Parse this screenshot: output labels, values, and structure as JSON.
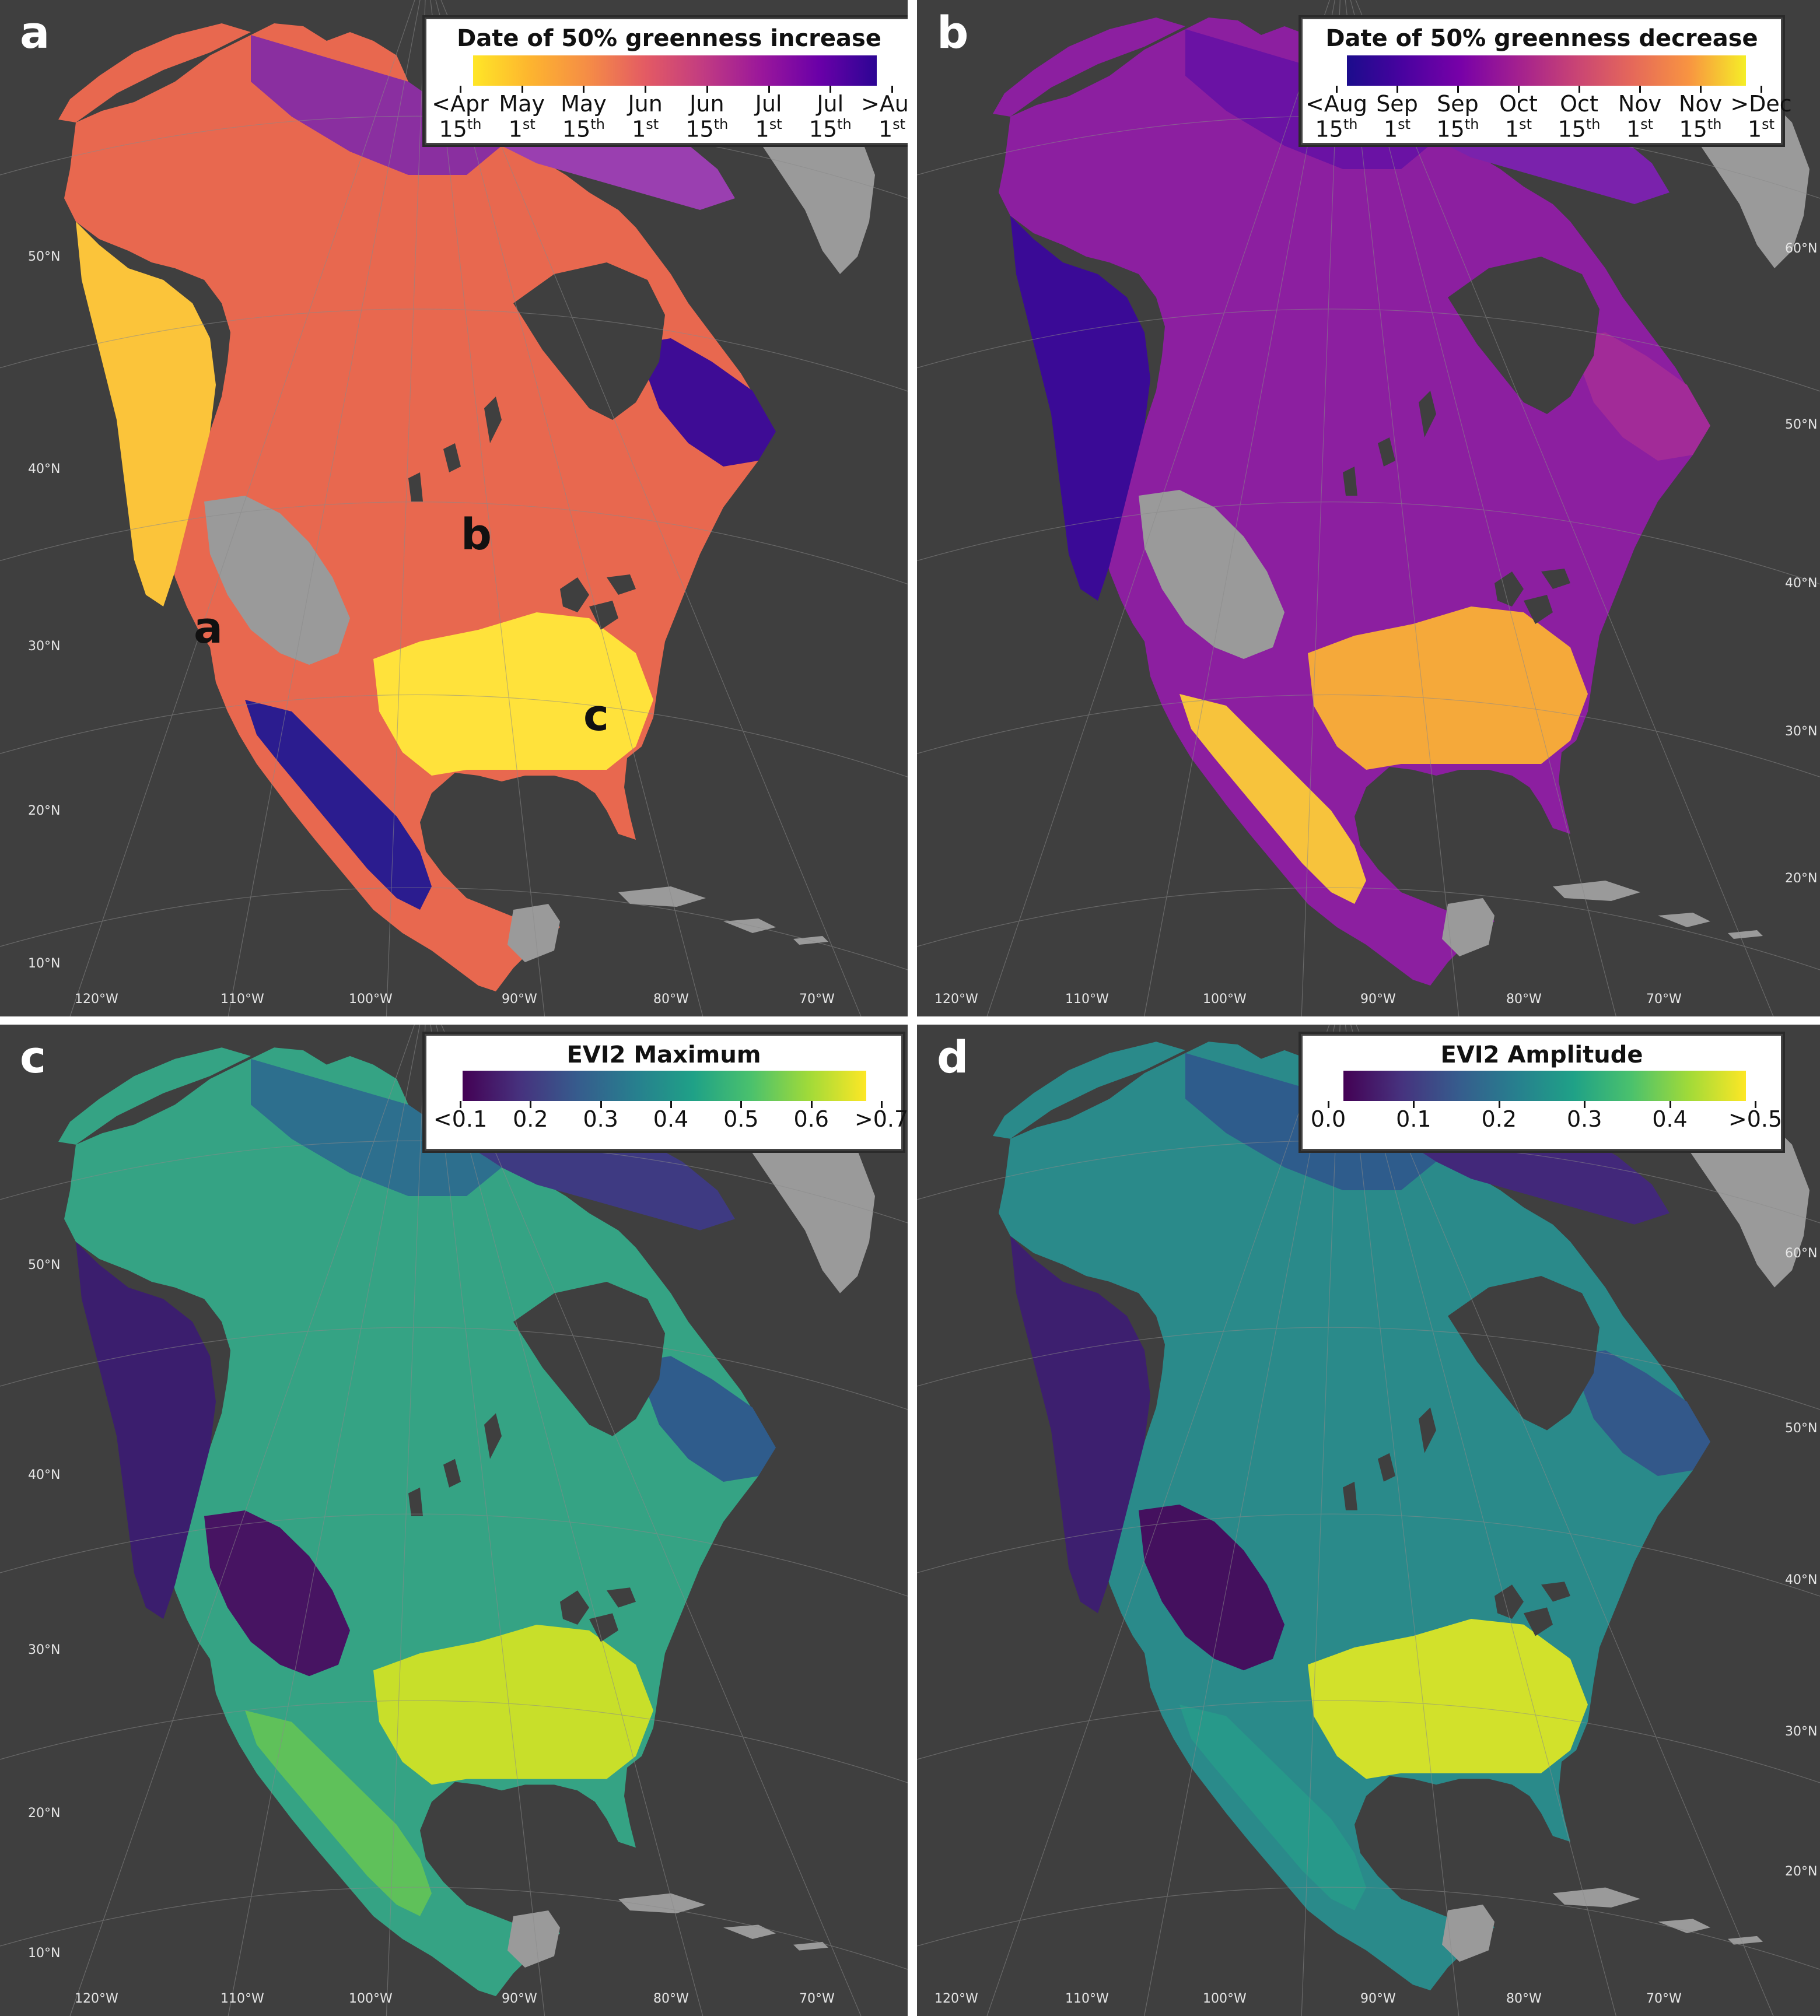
{
  "panels": [
    {
      "id": "a",
      "letter": "a",
      "legend_title": "Date of 50% greenness increase",
      "legend_gradient": [
        "#ffe627",
        "#fdb42f",
        "#f58c46",
        "#e35a64",
        "#c13b82",
        "#9a179b",
        "#6a00a8",
        "#2c0594"
      ],
      "legend_ticks": [
        {
          "l1": "<Apr",
          "day": "15",
          "sfx": "th"
        },
        {
          "l1": "May",
          "day": "1",
          "sfx": "st"
        },
        {
          "l1": "May",
          "day": "15",
          "sfx": "th"
        },
        {
          "l1": "Jun",
          "day": "1",
          "sfx": "st"
        },
        {
          "l1": "Jun",
          "day": "15",
          "sfx": "th"
        },
        {
          "l1": "Jul",
          "day": "1",
          "sfx": "st"
        },
        {
          "l1": "Jul",
          "day": "15",
          "sfx": "th"
        },
        {
          "l1": ">Aug",
          "day": "1",
          "sfx": "st"
        }
      ],
      "lat_labels": [
        "50°N",
        "40°N",
        "30°N",
        "20°N",
        "10°N"
      ],
      "lon_labels": [
        "120°W",
        "110°W",
        "100°W",
        "90°W",
        "80°W",
        "70°W"
      ],
      "annotations": [
        "a",
        "b",
        "c"
      ],
      "map_colors": {
        "north": "#8a2fa0",
        "boreal": "#e8684f",
        "west": "#fbc43a",
        "south": "#ffe23b",
        "quebec": "#3e0c95",
        "arctic": "#9a3fb0",
        "desert": "#9a9a9a",
        "mexico": "#2b1c8f"
      }
    },
    {
      "id": "b",
      "letter": "b",
      "legend_title": "Date of 50% greenness decrease",
      "legend_gradient": [
        "#1b0c8c",
        "#4a02a0",
        "#7801a8",
        "#a3208f",
        "#c84375",
        "#e5685a",
        "#f89441",
        "#f5ee27"
      ],
      "legend_ticks": [
        {
          "l1": "<Aug",
          "day": "15",
          "sfx": "th"
        },
        {
          "l1": "Sep",
          "day": "1",
          "sfx": "st"
        },
        {
          "l1": "Sep",
          "day": "15",
          "sfx": "th"
        },
        {
          "l1": "Oct",
          "day": "1",
          "sfx": "st"
        },
        {
          "l1": "Oct",
          "day": "15",
          "sfx": "th"
        },
        {
          "l1": "Nov",
          "day": "1",
          "sfx": "st"
        },
        {
          "l1": "Nov",
          "day": "15",
          "sfx": "th"
        },
        {
          "l1": ">Dec",
          "day": "1",
          "sfx": "st"
        }
      ],
      "lat_labels": [
        "60°N",
        "50°N",
        "40°N",
        "30°N",
        "20°N"
      ],
      "lon_labels": [
        "120°W",
        "110°W",
        "100°W",
        "90°W",
        "80°W",
        "70°W"
      ],
      "annotations": [],
      "map_colors": {
        "north": "#6a12a4",
        "boreal": "#8c1fa0",
        "west": "#3a0a96",
        "south": "#f5a93a",
        "quebec": "#a22b98",
        "arctic": "#7a22ac",
        "desert": "#9a9a9a",
        "mexico": "#f7c33c"
      }
    },
    {
      "id": "c",
      "letter": "c",
      "legend_title": "EVI2 Maximum",
      "legend_gradient": [
        "#440154",
        "#46327e",
        "#365c8d",
        "#277f8e",
        "#1fa187",
        "#4ac16d",
        "#a0da39",
        "#fde725"
      ],
      "legend_ticks": [
        {
          "l1": "<0.1"
        },
        {
          "l1": "0.2"
        },
        {
          "l1": "0.3"
        },
        {
          "l1": "0.4"
        },
        {
          "l1": "0.5"
        },
        {
          "l1": "0.6"
        },
        {
          "l1": ">0.7"
        }
      ],
      "lat_labels": [
        "50°N",
        "40°N",
        "30°N",
        "20°N",
        "10°N"
      ],
      "lon_labels": [
        "120°W",
        "110°W",
        "100°W",
        "90°W",
        "80°W",
        "70°W"
      ],
      "annotations": [],
      "map_colors": {
        "north": "#2d6f8e",
        "boreal": "#35a384",
        "west": "#3b1e6e",
        "south": "#c8df2a",
        "quebec": "#2f5c8c",
        "arctic": "#3e3a82",
        "desert": "#471462",
        "mexico": "#5fc15a"
      }
    },
    {
      "id": "d",
      "letter": "d",
      "legend_title": "EVI2 Amplitude",
      "legend_gradient": [
        "#440154",
        "#46327e",
        "#365c8d",
        "#277f8e",
        "#1fa187",
        "#4ac16d",
        "#a0da39",
        "#fde725"
      ],
      "legend_ticks": [
        {
          "l1": "0.0"
        },
        {
          "l1": "0.1"
        },
        {
          "l1": "0.2"
        },
        {
          "l1": "0.3"
        },
        {
          "l1": "0.4"
        },
        {
          "l1": ">0.5"
        }
      ],
      "lat_labels": [
        "60°N",
        "50°N",
        "40°N",
        "30°N",
        "20°N"
      ],
      "lon_labels": [
        "120°W",
        "110°W",
        "100°W",
        "90°W",
        "80°W",
        "70°W"
      ],
      "annotations": [],
      "map_colors": {
        "north": "#2e5c8c",
        "boreal": "#2a8a8a",
        "west": "#3d1f6f",
        "south": "#d2e12b",
        "quebec": "#33588a",
        "arctic": "#42287a",
        "desert": "#44105e",
        "mexico": "#27998a"
      }
    }
  ]
}
